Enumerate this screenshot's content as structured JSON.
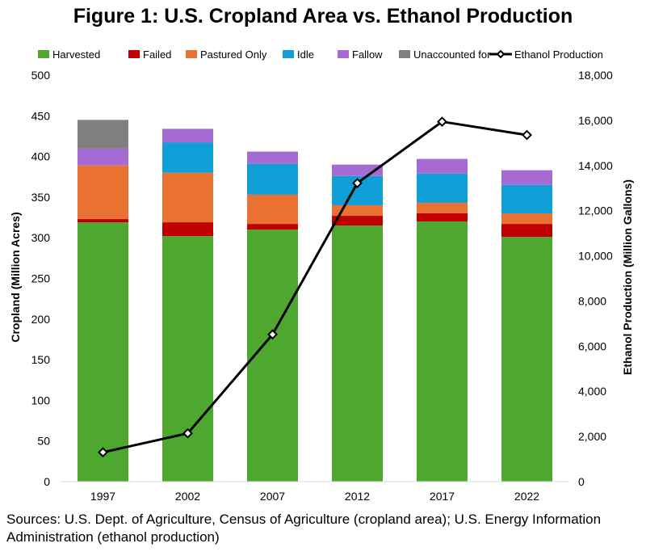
{
  "title": "Figure 1: U.S. Cropland Area vs. Ethanol Production",
  "source_note": "Sources: U.S. Dept. of Agriculture, Census of Agriculture (cropland area); U.S. Energy Information Administration (ethanol production)",
  "chart_data": {
    "type": "bar",
    "stacked": true,
    "categories": [
      "1997",
      "2002",
      "2007",
      "2012",
      "2017",
      "2022"
    ],
    "ylabel": "Cropland (Million Acres)",
    "y2label": "Ethanol Production (Million Gallons)",
    "ylim": [
      0,
      500
    ],
    "y2lim": [
      0,
      18000
    ],
    "yticks": [
      0,
      50,
      100,
      150,
      200,
      250,
      300,
      350,
      400,
      450,
      500
    ],
    "yticks_labels": [
      "0",
      "50",
      "100",
      "150",
      "200",
      "250",
      "300",
      "350",
      "400",
      "450",
      "500"
    ],
    "y2ticks": [
      0,
      2000,
      4000,
      6000,
      8000,
      10000,
      12000,
      14000,
      16000,
      18000
    ],
    "y2ticks_labels": [
      "0",
      "2,000",
      "4,000",
      "6,000",
      "8,000",
      "10,000",
      "12,000",
      "14,000",
      "16,000",
      "18,000"
    ],
    "grid": false,
    "legend_position": "top",
    "series": [
      {
        "name": "Harvested",
        "color": "#4ea72e",
        "values": [
          319,
          302,
          310,
          315,
          320,
          301
        ]
      },
      {
        "name": "Failed",
        "color": "#c00000",
        "values": [
          4,
          17,
          7,
          12,
          10,
          16
        ]
      },
      {
        "name": "Pastured Only",
        "color": "#e97132",
        "values": [
          66,
          61,
          36,
          13,
          13,
          13
        ]
      },
      {
        "name": "Idle",
        "color": "#0f9ed5",
        "values": [
          0,
          37,
          38,
          36,
          36,
          35
        ]
      },
      {
        "name": "Fallow",
        "color": "#a66bd3",
        "values": [
          21,
          17,
          15,
          14,
          18,
          18
        ]
      },
      {
        "name": "Unaccounted for",
        "color": "#808080",
        "values": [
          35,
          0,
          0,
          0,
          0,
          0
        ]
      }
    ],
    "line_series": {
      "name": "Ethanol Production",
      "color": "#000000",
      "axis": "right",
      "values": [
        1300,
        2140,
        6520,
        13220,
        15940,
        15350
      ]
    }
  }
}
